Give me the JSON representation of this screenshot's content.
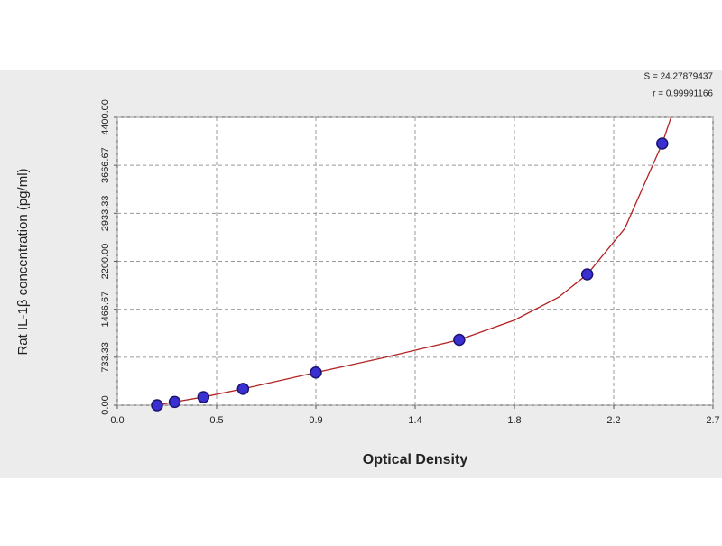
{
  "chart_data": {
    "type": "scatter",
    "xlabel": "Optical Density",
    "ylabel": "Rat IL-1β concentration (pg/ml)",
    "annotations": [
      "S = 24.27879437",
      "r = 0.99991166"
    ],
    "x": [
      0.18,
      0.26,
      0.39,
      0.57,
      0.9,
      1.55,
      2.13,
      2.47
    ],
    "values": [
      0,
      50,
      125,
      250,
      500,
      1000,
      2000,
      4000
    ],
    "color": "#3a2fd0",
    "fit": {
      "x": [
        0.18,
        0.26,
        0.39,
        0.57,
        0.9,
        1.2,
        1.55,
        1.8,
        2.0,
        2.13,
        2.3,
        2.47,
        2.52
      ],
      "values": [
        0,
        50,
        125,
        250,
        500,
        720,
        1000,
        1300,
        1650,
        2000,
        2700,
        4000,
        4500
      ],
      "color": "#b22222"
    },
    "xlim": [
      0,
      2.7
    ],
    "xticks": [
      {
        "value": 0,
        "label": "0.0"
      },
      {
        "value": 0.45,
        "label": "0.5"
      },
      0.9,
      {
        "value": 1.35,
        "label": "1.4"
      },
      1.8,
      {
        "value": 2.25,
        "label": "2.2"
      },
      2.7
    ],
    "ylim": [
      0,
      4400
    ],
    "yticks": [
      {
        "value": 0,
        "label": "0.00"
      },
      {
        "value": 733.33,
        "label": "733.33"
      },
      {
        "value": 1466.67,
        "label": "1466.67"
      },
      {
        "value": 2200,
        "label": "2200.00"
      },
      {
        "value": 2933.33,
        "label": "2933.33"
      },
      {
        "value": 3666.67,
        "label": "3666.67"
      },
      {
        "value": 4400,
        "label": "4400.00"
      }
    ],
    "grid": true
  }
}
